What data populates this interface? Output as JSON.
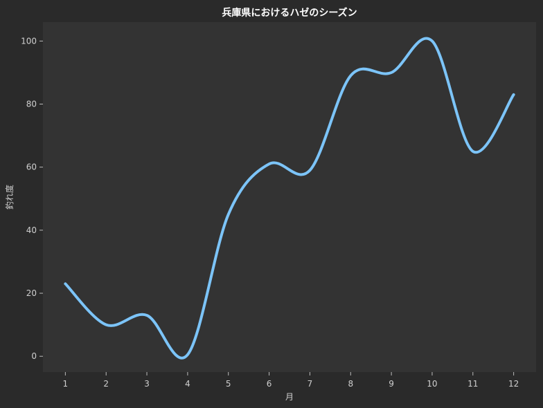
{
  "chart_data": {
    "type": "line",
    "title": "兵庫県におけるハゼのシーズン",
    "xlabel": "月",
    "ylabel": "釣れ度",
    "x": [
      1,
      2,
      3,
      4,
      5,
      6,
      7,
      8,
      9,
      10,
      11,
      12
    ],
    "series": [
      {
        "values": [
          23,
          10,
          13,
          0.5,
          45,
          61,
          59,
          89,
          90,
          100,
          65,
          83
        ]
      }
    ],
    "xlim": [
      0.45,
      12.55
    ],
    "ylim": [
      -5,
      106
    ],
    "xticks": [
      1,
      2,
      3,
      4,
      5,
      6,
      7,
      8,
      9,
      10,
      11,
      12
    ],
    "yticks": [
      0,
      20,
      40,
      60,
      80,
      100
    ],
    "grid": false,
    "line_color": "#7cc4f8",
    "plot_background": "#333333",
    "page_background": "#2a2a2a"
  }
}
